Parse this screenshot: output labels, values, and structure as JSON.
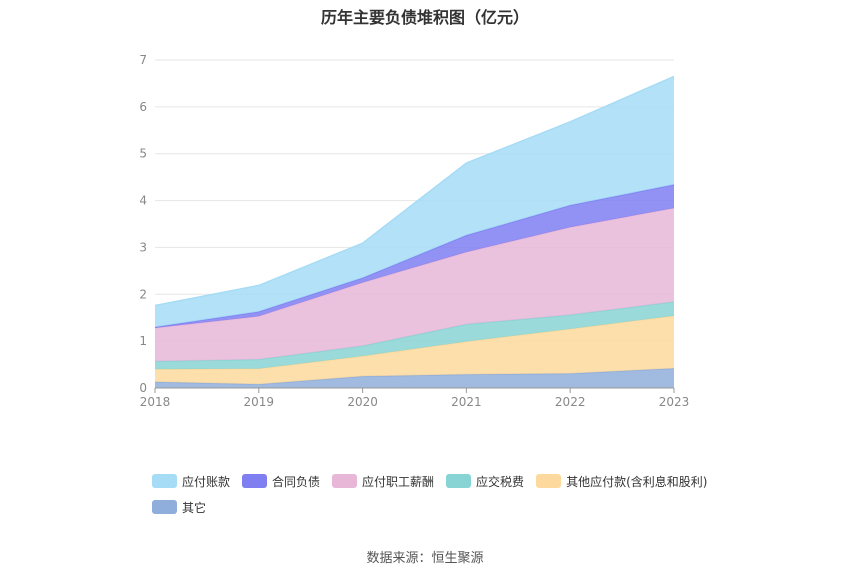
{
  "title": "历年主要负债堆积图（亿元）",
  "source": "数据来源：恒生聚源",
  "chart_data": {
    "type": "area",
    "stacked": true,
    "categories": [
      "2018",
      "2019",
      "2020",
      "2021",
      "2022",
      "2023"
    ],
    "ylim": [
      0,
      7
    ],
    "yticks": [
      "0",
      "1",
      "2",
      "3",
      "4",
      "5",
      "6",
      "7"
    ],
    "grid": true,
    "legend_position": "bottom-left",
    "series": [
      {
        "name": "其它",
        "color": "#8faedb",
        "values": [
          0.13,
          0.08,
          0.25,
          0.29,
          0.31,
          0.42
        ]
      },
      {
        "name": "其他应付款(含利息和股利)",
        "color": "#fdd99d",
        "values": [
          0.27,
          0.33,
          0.43,
          0.7,
          0.95,
          1.12
        ]
      },
      {
        "name": "应交税费",
        "color": "#88d4d4",
        "values": [
          0.17,
          0.2,
          0.22,
          0.37,
          0.3,
          0.3
        ]
      },
      {
        "name": "应付职工薪酬",
        "color": "#e8b7d8",
        "values": [
          0.71,
          0.92,
          1.35,
          1.54,
          1.87,
          2.0
        ]
      },
      {
        "name": "合同负债",
        "color": "#7f7ff2",
        "values": [
          0.02,
          0.1,
          0.1,
          0.36,
          0.47,
          0.5
        ]
      },
      {
        "name": "应付账款",
        "color": "#a6dcf6",
        "values": [
          0.46,
          0.56,
          0.74,
          1.54,
          1.78,
          2.31
        ]
      }
    ],
    "legend_order": [
      "应付账款",
      "合同负债",
      "应付职工薪酬",
      "应交税费",
      "其他应付款(含利息和股利)",
      "其它"
    ]
  }
}
